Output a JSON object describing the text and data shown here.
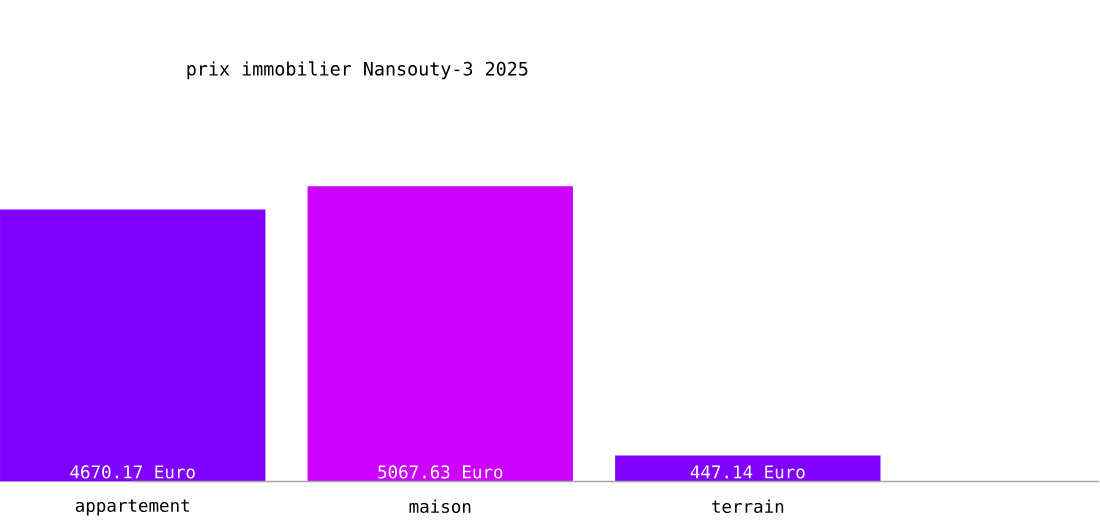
{
  "chart_data": {
    "type": "bar",
    "title": "prix immobilier Nansouty-3 2025",
    "categories": [
      "appartement",
      "maison",
      "terrain"
    ],
    "values": [
      4670.17,
      5067.63,
      447.14
    ],
    "colors": [
      "#8000ff",
      "#cc00ff",
      "#7f00ff"
    ],
    "data_labels": true,
    "value_labels": [
      "4670.17 Euro",
      "5067.63 Euro",
      "447.14 Euro"
    ]
  }
}
